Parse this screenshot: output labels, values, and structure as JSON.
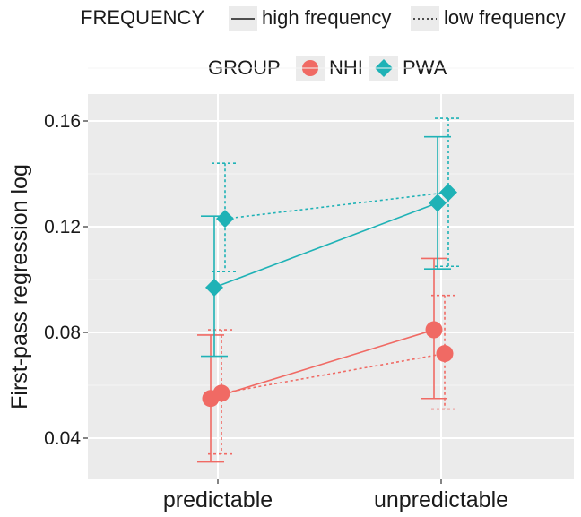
{
  "chart_data": {
    "type": "line",
    "ylabel": "First-pass regression log",
    "xlabel": "",
    "categories": [
      "predictable",
      "unpredictable"
    ],
    "ylim": [
      0.03,
      0.175
    ],
    "yticks": [
      0.04,
      0.08,
      0.12,
      0.16
    ],
    "ytick_labels": [
      "0.04",
      "0.08",
      "0.12",
      "0.16"
    ],
    "grid": true,
    "legend": {
      "frequency": {
        "title": "FREQUENCY",
        "items": [
          {
            "label": "high frequency",
            "linestyle": "solid"
          },
          {
            "label": "low frequency",
            "linestyle": "dotted"
          }
        ]
      },
      "group": {
        "title": "GROUP",
        "items": [
          {
            "label": "NHI",
            "marker": "circle",
            "color": "#F06A64"
          },
          {
            "label": "PWA",
            "marker": "diamond",
            "color": "#1FB2B6"
          }
        ]
      },
      "placement": "top"
    },
    "series": [
      {
        "group": "NHI",
        "frequency": "high frequency",
        "color": "#F06A64",
        "marker": "circle",
        "linestyle": "solid",
        "values": [
          0.055,
          0.081
        ],
        "err_low": [
          0.031,
          0.055
        ],
        "err_high": [
          0.079,
          0.108
        ]
      },
      {
        "group": "NHI",
        "frequency": "low frequency",
        "color": "#F06A64",
        "marker": "circle",
        "linestyle": "dotted",
        "values": [
          0.057,
          0.072
        ],
        "err_low": [
          0.034,
          0.051
        ],
        "err_high": [
          0.081,
          0.094
        ]
      },
      {
        "group": "PWA",
        "frequency": "high frequency",
        "color": "#1FB2B6",
        "marker": "diamond",
        "linestyle": "solid",
        "values": [
          0.097,
          0.129
        ],
        "err_low": [
          0.071,
          0.104
        ],
        "err_high": [
          0.124,
          0.154
        ]
      },
      {
        "group": "PWA",
        "frequency": "low frequency",
        "color": "#1FB2B6",
        "marker": "diamond",
        "linestyle": "dotted",
        "values": [
          0.123,
          0.133
        ],
        "err_low": [
          0.103,
          0.105
        ],
        "err_high": [
          0.144,
          0.161
        ]
      }
    ]
  }
}
